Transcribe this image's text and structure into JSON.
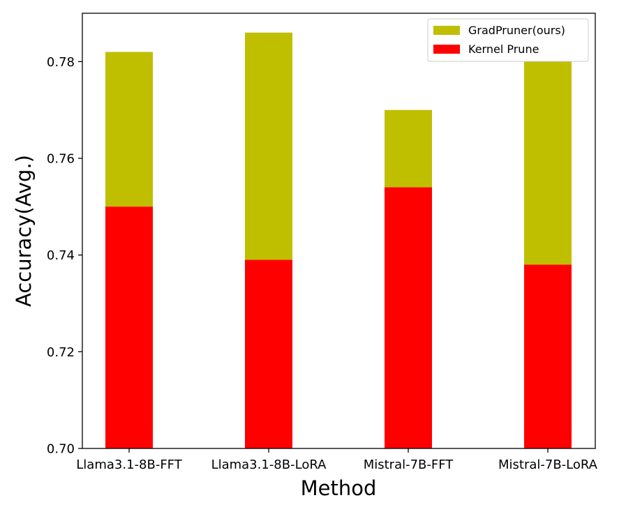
{
  "chart_data": {
    "type": "bar",
    "stacking": "overlay",
    "title": "",
    "xlabel": "Method",
    "ylabel": "Accuracy(Avg.)",
    "categories": [
      "Llama3.1-8B-FFT",
      "Llama3.1-8B-LoRA",
      "Mistral-7B-FFT",
      "Mistral-7B-LoRA"
    ],
    "series": [
      {
        "name": "GradPruner(ours)",
        "color": "#bfbf00",
        "values": [
          0.782,
          0.786,
          0.77,
          0.78
        ]
      },
      {
        "name": "Kernel Prune",
        "color": "#ff0000",
        "values": [
          0.75,
          0.739,
          0.754,
          0.738
        ]
      }
    ],
    "ylim": [
      0.7,
      0.79
    ],
    "yticks": [
      0.7,
      0.72,
      0.74,
      0.76,
      0.78
    ],
    "ytick_labels": [
      "0.70",
      "0.72",
      "0.74",
      "0.76",
      "0.78"
    ],
    "grid": false,
    "legend_position": "top-right"
  }
}
